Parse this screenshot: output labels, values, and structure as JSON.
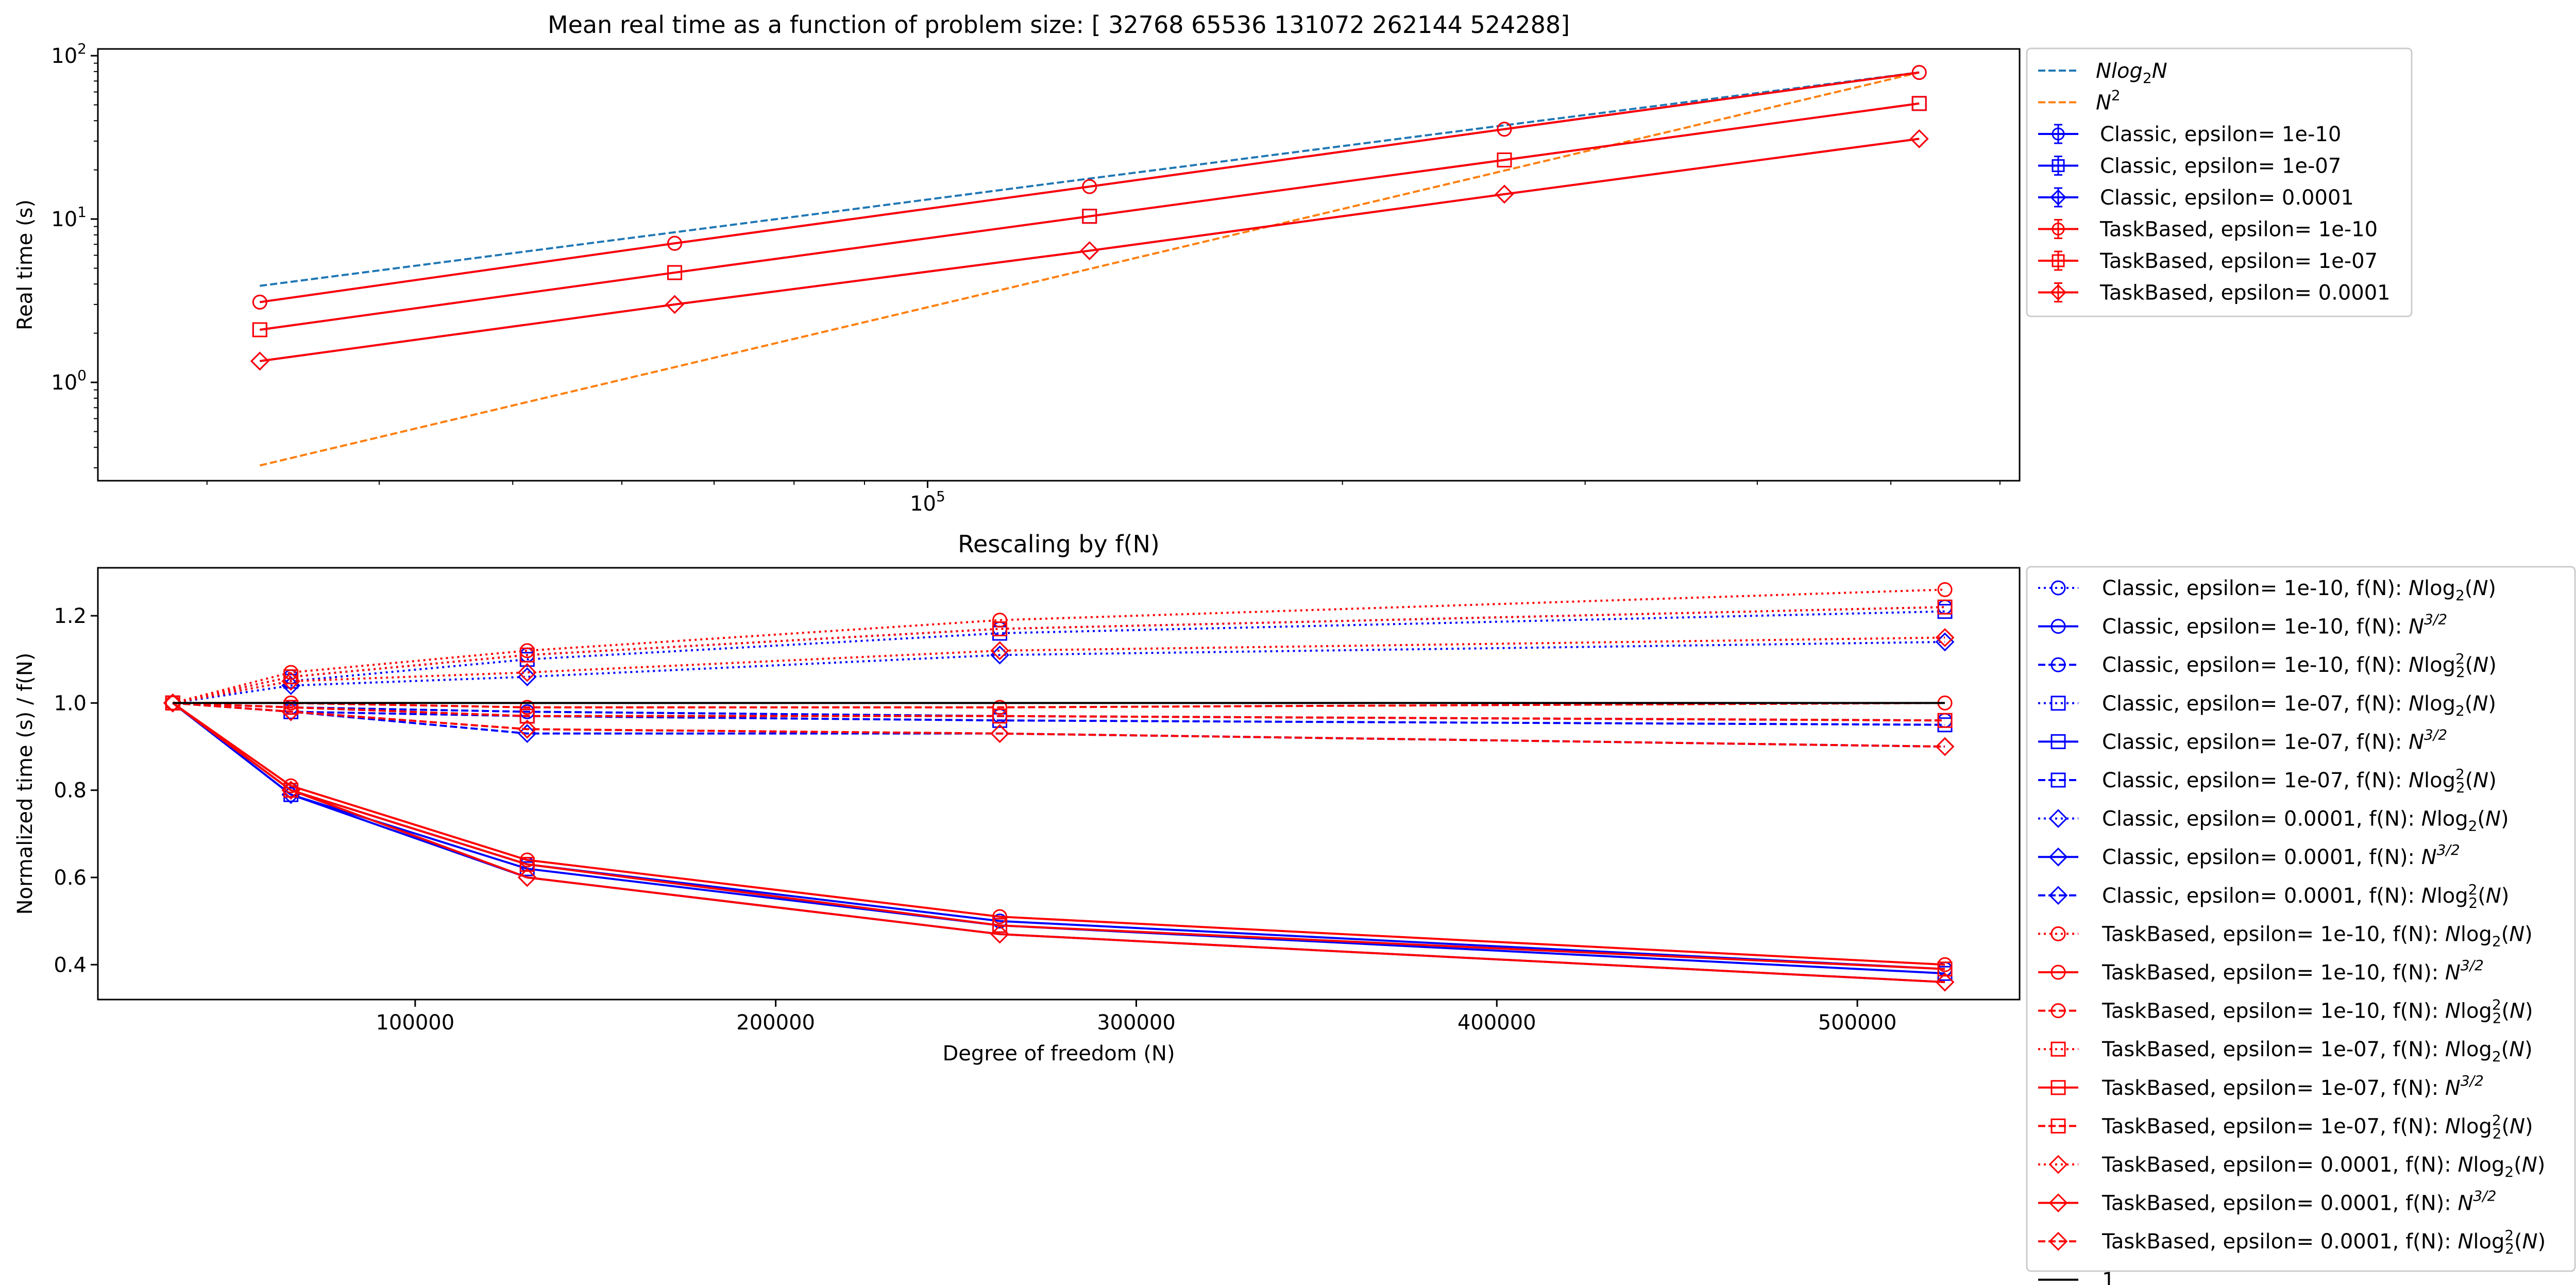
{
  "chart_data": [
    {
      "type": "line",
      "title": "Mean real time as a function of problem size: [ 32768  65536 131072 262144 524288]",
      "xlabel": "",
      "ylabel": "Real time (s)",
      "xscale": "log",
      "yscale": "log",
      "xlim": [
        25000,
        620000
      ],
      "ylim": [
        0.25,
        110
      ],
      "x_tick_labels": [
        {
          "value": 100000,
          "mant": "10",
          "exp": "5"
        }
      ],
      "y_tick_labels": [
        {
          "value": 1,
          "mant": "10",
          "exp": "0"
        },
        {
          "value": 10,
          "mant": "10",
          "exp": "1"
        },
        {
          "value": 100,
          "mant": "10",
          "exp": "2"
        }
      ],
      "legend_position": "outside-right",
      "x": [
        32768,
        65536,
        131072,
        262144,
        524288
      ],
      "reference_lines": [
        {
          "name": "Nlog2N",
          "color": "#1f77b4",
          "dash": "dashed",
          "values": [
            3.9,
            8.3,
            17.7,
            37.5,
            79.0
          ]
        },
        {
          "name": "N^2",
          "color": "#ff7f0e",
          "dash": "dashed",
          "values": [
            0.31,
            1.24,
            4.95,
            19.8,
            79.0
          ]
        }
      ],
      "series": [
        {
          "name": "Classic, epsilon= 1e-10",
          "color": "#0000ff",
          "marker": "o",
          "values": [
            3.1,
            7.1,
            15.8,
            35.5,
            79.0
          ]
        },
        {
          "name": "Classic, epsilon= 1e-07",
          "color": "#0000ff",
          "marker": "s",
          "values": [
            2.1,
            4.7,
            10.4,
            23.0,
            51.0
          ]
        },
        {
          "name": "Classic, epsilon= 0.0001",
          "color": "#0000ff",
          "marker": "D",
          "values": [
            1.35,
            3.0,
            6.4,
            14.2,
            31.0
          ]
        },
        {
          "name": "TaskBased, epsilon= 1e-10",
          "color": "#ff0000",
          "marker": "o",
          "values": [
            3.1,
            7.1,
            15.8,
            35.5,
            79.0
          ]
        },
        {
          "name": "TaskBased, epsilon= 1e-07",
          "color": "#ff0000",
          "marker": "s",
          "values": [
            2.1,
            4.7,
            10.4,
            23.0,
            51.0
          ]
        },
        {
          "name": "TaskBased, epsilon= 0.0001",
          "color": "#ff0000",
          "marker": "D",
          "values": [
            1.35,
            3.0,
            6.4,
            14.2,
            31.0
          ]
        }
      ]
    },
    {
      "type": "line",
      "title": "Rescaling by f(N)",
      "xlabel": "Degree of freedom (N)",
      "ylabel": "Normalized time (s) / f(N)",
      "xlim": [
        12000,
        545000
      ],
      "ylim": [
        0.32,
        1.31
      ],
      "x_ticks": [
        100000,
        200000,
        300000,
        400000,
        500000
      ],
      "x_tick_labels": [
        "100000",
        "200000",
        "300000",
        "400000",
        "500000"
      ],
      "y_ticks": [
        0.4,
        0.6,
        0.8,
        1.0,
        1.2
      ],
      "y_tick_labels": [
        "0.4",
        "0.6",
        "0.8",
        "1.0",
        "1.2"
      ],
      "legend_position": "outside-right",
      "x": [
        32768,
        65536,
        131072,
        262144,
        524288
      ],
      "series": [
        {
          "name": "Classic, epsilon= 1e-10, f(N): ",
          "math": "Nlog2",
          "color": "#0000ff",
          "dash": "dotted",
          "marker": "o",
          "values": [
            1.0,
            1.06,
            1.11,
            1.17,
            1.22
          ]
        },
        {
          "name": "Classic, epsilon= 1e-10, f(N): ",
          "math": "N32",
          "color": "#0000ff",
          "dash": "solid",
          "marker": "o",
          "values": [
            1.0,
            0.8,
            0.63,
            0.5,
            0.39
          ]
        },
        {
          "name": "Classic, epsilon= 1e-10, f(N): ",
          "math": "Nlog22",
          "color": "#0000ff",
          "dash": "dashed",
          "marker": "o",
          "values": [
            1.0,
            0.99,
            0.98,
            0.97,
            0.96
          ]
        },
        {
          "name": "Classic, epsilon= 1e-07, f(N): ",
          "math": "Nlog2",
          "color": "#0000ff",
          "dash": "dotted",
          "marker": "s",
          "values": [
            1.0,
            1.05,
            1.1,
            1.16,
            1.21
          ]
        },
        {
          "name": "Classic, epsilon= 1e-07, f(N): ",
          "math": "N32",
          "color": "#0000ff",
          "dash": "solid",
          "marker": "s",
          "values": [
            1.0,
            0.79,
            0.62,
            0.49,
            0.38
          ]
        },
        {
          "name": "Classic, epsilon= 1e-07, f(N): ",
          "math": "Nlog22",
          "color": "#0000ff",
          "dash": "dashed",
          "marker": "s",
          "values": [
            1.0,
            0.98,
            0.97,
            0.96,
            0.95
          ]
        },
        {
          "name": "Classic, epsilon= 0.0001, f(N): ",
          "math": "Nlog2",
          "color": "#0000ff",
          "dash": "dotted",
          "marker": "D",
          "values": [
            1.0,
            1.04,
            1.06,
            1.11,
            1.14
          ]
        },
        {
          "name": "Classic, epsilon= 0.0001, f(N): ",
          "math": "N32",
          "color": "#0000ff",
          "dash": "solid",
          "marker": "D",
          "values": [
            1.0,
            0.79,
            0.6,
            0.47,
            0.36
          ]
        },
        {
          "name": "Classic, epsilon= 0.0001, f(N): ",
          "math": "Nlog22",
          "color": "#0000ff",
          "dash": "dashed",
          "marker": "D",
          "values": [
            1.0,
            0.98,
            0.93,
            0.93,
            0.9
          ]
        },
        {
          "name": "TaskBased, epsilon= 1e-10, f(N): ",
          "math": "Nlog2",
          "color": "#ff0000",
          "dash": "dotted",
          "marker": "o",
          "values": [
            1.0,
            1.07,
            1.12,
            1.19,
            1.26
          ]
        },
        {
          "name": "TaskBased, epsilon= 1e-10, f(N): ",
          "math": "N32",
          "color": "#ff0000",
          "dash": "solid",
          "marker": "o",
          "values": [
            1.0,
            0.81,
            0.64,
            0.51,
            0.4
          ]
        },
        {
          "name": "TaskBased, epsilon= 1e-10, f(N): ",
          "math": "Nlog22",
          "color": "#ff0000",
          "dash": "dashed",
          "marker": "o",
          "values": [
            1.0,
            1.0,
            0.99,
            0.99,
            1.0
          ]
        },
        {
          "name": "TaskBased, epsilon= 1e-07, f(N): ",
          "math": "Nlog2",
          "color": "#ff0000",
          "dash": "dotted",
          "marker": "s",
          "values": [
            1.0,
            1.06,
            1.11,
            1.17,
            1.22
          ]
        },
        {
          "name": "TaskBased, epsilon= 1e-07, f(N): ",
          "math": "N32",
          "color": "#ff0000",
          "dash": "solid",
          "marker": "s",
          "values": [
            1.0,
            0.8,
            0.63,
            0.49,
            0.39
          ]
        },
        {
          "name": "TaskBased, epsilon= 1e-07, f(N): ",
          "math": "Nlog22",
          "color": "#ff0000",
          "dash": "dashed",
          "marker": "s",
          "values": [
            1.0,
            0.99,
            0.97,
            0.97,
            0.96
          ]
        },
        {
          "name": "TaskBased, epsilon= 0.0001, f(N): ",
          "math": "Nlog2",
          "color": "#ff0000",
          "dash": "dotted",
          "marker": "D",
          "values": [
            1.0,
            1.05,
            1.07,
            1.12,
            1.15
          ]
        },
        {
          "name": "TaskBased, epsilon= 0.0001, f(N): ",
          "math": "N32",
          "color": "#ff0000",
          "dash": "solid",
          "marker": "D",
          "values": [
            1.0,
            0.8,
            0.6,
            0.47,
            0.36
          ]
        },
        {
          "name": "TaskBased, epsilon= 0.0001, f(N): ",
          "math": "Nlog22",
          "color": "#ff0000",
          "dash": "dashed",
          "marker": "D",
          "values": [
            1.0,
            0.98,
            0.94,
            0.93,
            0.9
          ]
        },
        {
          "name": "1",
          "color": "#000000",
          "dash": "solid",
          "marker": "none",
          "values": [
            1.0,
            1.0,
            1.0,
            1.0,
            1.0
          ]
        }
      ]
    }
  ]
}
